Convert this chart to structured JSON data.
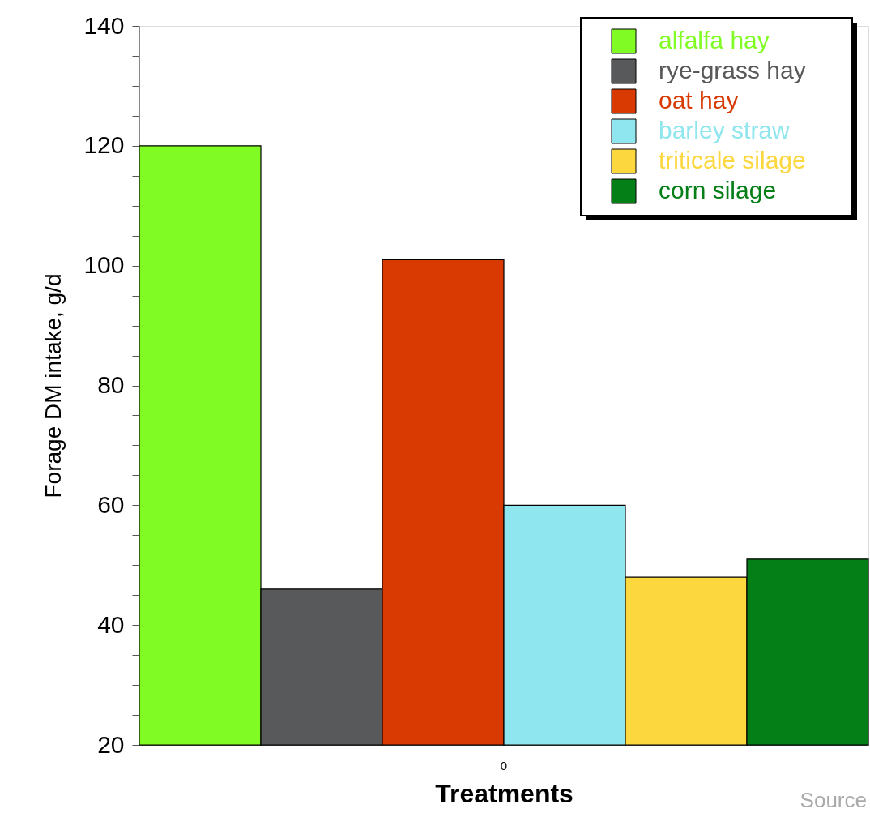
{
  "chart_data": {
    "type": "bar",
    "xlabel": "Treatments",
    "ylabel": "Forage DM  intake, g/d",
    "categories": [
      "0"
    ],
    "series": [
      {
        "name": "alfalfa hay",
        "color": "#80fc24",
        "values": [
          120
        ]
      },
      {
        "name": "rye-grass hay",
        "color": "#58595b",
        "values": [
          46
        ]
      },
      {
        "name": "oat hay",
        "color": "#d83a02",
        "values": [
          101
        ]
      },
      {
        "name": "barley straw",
        "color": "#90e6ee",
        "values": [
          60
        ]
      },
      {
        "name": "triticale silage",
        "color": "#fdd73e",
        "values": [
          48
        ]
      },
      {
        "name": "corn silage",
        "color": "#047e16",
        "values": [
          51
        ]
      }
    ],
    "ylim": [
      20,
      140
    ],
    "yticks": [
      20,
      {
        "value": 25,
        "label": null
      },
      {
        "value": 30,
        "label": null
      },
      {
        "value": 35,
        "label": null
      },
      40,
      {
        "value": 45,
        "label": null
      },
      {
        "value": 50,
        "label": null
      },
      {
        "value": 55,
        "label": null
      },
      60,
      {
        "value": 65,
        "label": null
      },
      {
        "value": 70,
        "label": null
      },
      {
        "value": 75,
        "label": null
      },
      80,
      {
        "value": 85,
        "label": null
      },
      {
        "value": 90,
        "label": null
      },
      {
        "value": 95,
        "label": null
      },
      100,
      {
        "value": 105,
        "label": null
      },
      {
        "value": 110,
        "label": null
      },
      {
        "value": 115,
        "label": null
      },
      120,
      {
        "value": 125,
        "label": null
      },
      {
        "value": 130,
        "label": null
      },
      {
        "value": 135,
        "label": null
      },
      140
    ],
    "legend": "top right",
    "grid": false,
    "annotations": [
      "Source"
    ]
  }
}
